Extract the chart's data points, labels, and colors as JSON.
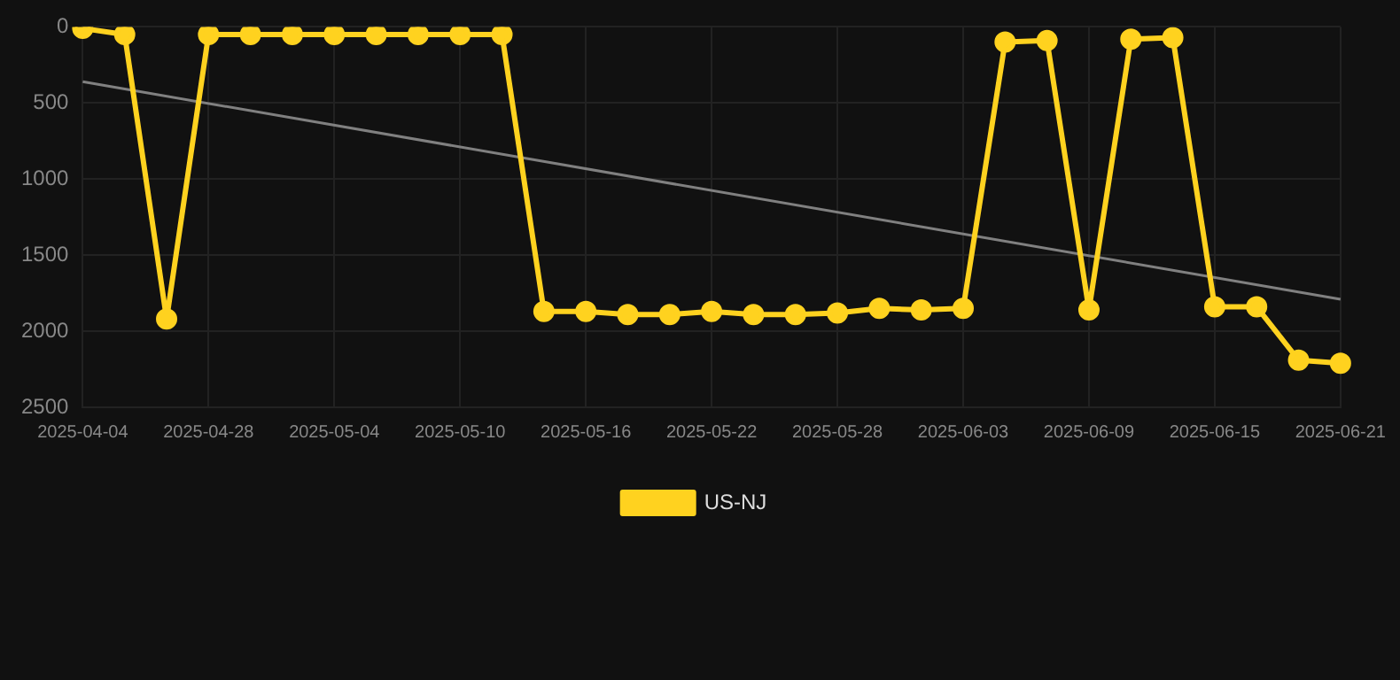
{
  "chart_data": {
    "type": "line",
    "categories": [
      "2025-04-04",
      null,
      null,
      "2025-04-28",
      null,
      null,
      "2025-05-04",
      null,
      null,
      "2025-05-10",
      null,
      null,
      "2025-05-16",
      null,
      null,
      "2025-05-22",
      null,
      null,
      "2025-05-28",
      null,
      null,
      "2025-06-03",
      null,
      null,
      "2025-06-09",
      null,
      null,
      "2025-06-15",
      null,
      null,
      "2025-06-21"
    ],
    "series": [
      {
        "name": "US-NJ",
        "color": "#ffd21f",
        "values": [
          10,
          50,
          1920,
          50,
          50,
          50,
          50,
          50,
          50,
          50,
          50,
          1870,
          1870,
          1890,
          1890,
          1870,
          1890,
          1890,
          1880,
          1850,
          1860,
          1850,
          100,
          90,
          1860,
          80,
          70,
          1840,
          1840,
          2190,
          2210
        ]
      },
      {
        "type": "line",
        "color": "#808080",
        "marker": "none",
        "values": [
          360,
          null,
          null,
          null,
          null,
          null,
          null,
          null,
          null,
          null,
          null,
          null,
          null,
          null,
          null,
          null,
          null,
          null,
          null,
          null,
          null,
          null,
          null,
          null,
          null,
          null,
          null,
          null,
          null,
          null,
          1790
        ]
      }
    ],
    "ylim": [
      2500,
      0
    ],
    "yticks": [
      0,
      500,
      1000,
      1500,
      2000,
      2500
    ],
    "grid": true,
    "legend": "bottom",
    "marker": "circle"
  }
}
